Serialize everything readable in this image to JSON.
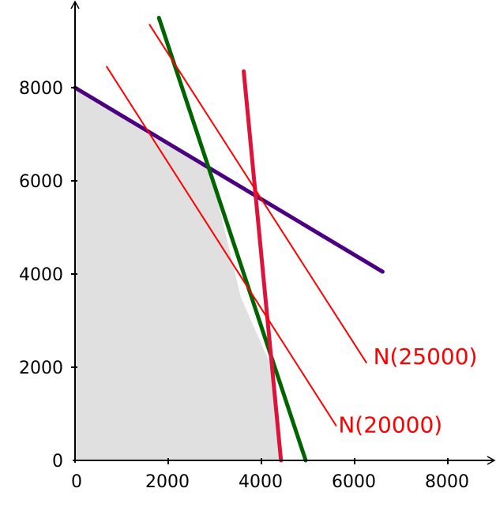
{
  "chart_data": {
    "type": "line",
    "title": "",
    "xlabel": "",
    "ylabel": "",
    "xlim": [
      0,
      9000
    ],
    "ylim": [
      0,
      8000
    ],
    "x_ticks": [
      0,
      2000,
      4000,
      6000,
      8000
    ],
    "y_ticks": [
      0,
      2000,
      4000,
      6000,
      8000
    ],
    "x_tick_labels": [
      "0",
      "2000",
      "4000",
      "6000",
      "8000"
    ],
    "y_tick_labels": [
      "0",
      "2000",
      "4000",
      "6000",
      "8000"
    ],
    "grid": false,
    "feasible_region": {
      "fill": "#e0e0e0",
      "points": [
        [
          0,
          0
        ],
        [
          0,
          8000
        ],
        [
          1560,
          7000
        ],
        [
          2900,
          6250
        ],
        [
          3560,
          3500
        ],
        [
          4220,
          2000
        ],
        [
          4420,
          0
        ]
      ]
    },
    "series": [
      {
        "color": "#4b0082",
        "style": "thick",
        "points": [
          [
            0,
            8000
          ],
          [
            6600,
            4050
          ]
        ]
      },
      {
        "color": "#006400",
        "style": "thick",
        "points": [
          [
            1800,
            9500
          ],
          [
            4950,
            0
          ]
        ]
      },
      {
        "color": "#dc143c",
        "style": "thick",
        "points": [
          [
            3620,
            8350
          ],
          [
            4420,
            0
          ]
        ]
      },
      {
        "name": "N(25000)",
        "color": "#ff0000",
        "style": "thin",
        "points": [
          [
            1600,
            9350
          ],
          [
            6250,
            2100
          ]
        ]
      },
      {
        "name": "N(20000)",
        "color": "#ff0000",
        "style": "thin",
        "points": [
          [
            680,
            8450
          ],
          [
            5600,
            750
          ]
        ]
      }
    ],
    "annotations": [
      {
        "text": "N(25000)",
        "color": "#ff0000",
        "x": 6400,
        "y": 2070
      },
      {
        "text": "N(20000)",
        "color": "#ff0000",
        "x": 5650,
        "y": 600
      }
    ]
  }
}
